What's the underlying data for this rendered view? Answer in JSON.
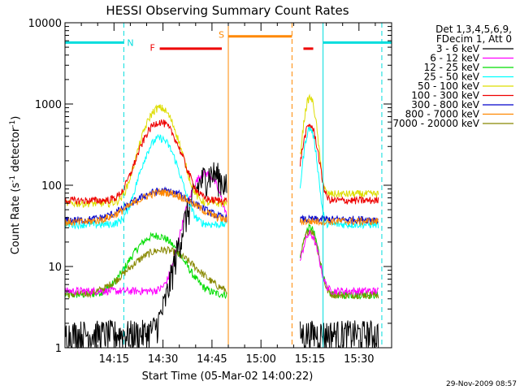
{
  "chart_data": {
    "type": "line",
    "title": "HESSI Observing Summary Count Rates",
    "xlabel": "Start Time (05-Mar-02 14:00:22)",
    "ylabel_main": "Count Rate (s",
    "ylabel_sup1": "-1",
    "ylabel_mid": " detector",
    "ylabel_sup2": "-1",
    "ylabel_end": ")",
    "y_scale": "log",
    "ylim": [
      1,
      10000
    ],
    "xlim_minutes": [
      0,
      100
    ],
    "x_ticks": [
      {
        "minute": 15,
        "label": "14:15"
      },
      {
        "minute": 30,
        "label": "14:30"
      },
      {
        "minute": 45,
        "label": "14:45"
      },
      {
        "minute": 60,
        "label": "15:00"
      },
      {
        "minute": 75,
        "label": "15:15"
      },
      {
        "minute": 90,
        "label": "15:30"
      }
    ],
    "y_ticks": [
      {
        "value": 1,
        "label": "1"
      },
      {
        "value": 10,
        "label": "10"
      },
      {
        "value": 100,
        "label": "100"
      },
      {
        "value": 1000,
        "label": "1000"
      },
      {
        "value": 10000,
        "label": "10000"
      }
    ],
    "legend_header": [
      "Det 1,3,4,5,6,9,",
      "FDecim 1, Att 0"
    ],
    "legend_position": "right, outside plot",
    "series": [
      {
        "name": "3 - 6 keV",
        "color": "#000000"
      },
      {
        "name": "6 - 12 keV",
        "color": "#ff00ff"
      },
      {
        "name": "12 - 25 keV",
        "color": "#00dd00"
      },
      {
        "name": "25 - 50 keV",
        "color": "#00ffff"
      },
      {
        "name": "50 - 100 keV",
        "color": "#dddd00"
      },
      {
        "name": "100 - 300 keV",
        "color": "#ee0000"
      },
      {
        "name": "300 - 800 keV",
        "color": "#0000cc"
      },
      {
        "name": "800 - 7000 keV",
        "color": "#ff8800"
      },
      {
        "name": "7000 - 20000 keV",
        "color": "#888800"
      }
    ],
    "data_gaps_minutes": [
      [
        49.5,
        72
      ],
      [
        96,
        100
      ]
    ],
    "curve_model": {
      "segments": [
        {
          "start": 0,
          "end": 49.5
        },
        {
          "start": 72,
          "end": 96
        }
      ],
      "baselines_seg1": [
        1.5,
        5,
        4.5,
        33,
        60,
        65,
        37,
        35,
        4.5
      ],
      "baselines_seg2": [
        1.5,
        5,
        4.5,
        33,
        78,
        65,
        38,
        36,
        4.5
      ],
      "peaks": [
        {
          "series": 3,
          "center": 29,
          "height": 380,
          "width": 4
        },
        {
          "series": 4,
          "center": 29,
          "height": 900,
          "width": 4
        },
        {
          "series": 5,
          "center": 29,
          "height": 600,
          "width": 4.5
        },
        {
          "series": 6,
          "center": 30,
          "height": 85,
          "width": 8
        },
        {
          "series": 7,
          "center": 30,
          "height": 82,
          "width": 8
        },
        {
          "series": 2,
          "center": 28,
          "height": 24,
          "width": 6
        },
        {
          "series": 8,
          "center": 30,
          "height": 16,
          "width": 8
        },
        {
          "series": 1,
          "center": 43,
          "height": 140,
          "width": 4
        },
        {
          "series": 0,
          "center": 45,
          "height": 140,
          "width": 5
        },
        {
          "series": 3,
          "center": 75,
          "height": 500,
          "width": 1.5
        },
        {
          "series": 4,
          "center": 75,
          "height": 1200,
          "width": 1.5
        },
        {
          "series": 5,
          "center": 75,
          "height": 550,
          "width": 1.8
        },
        {
          "series": 2,
          "center": 75,
          "height": 30,
          "width": 2
        },
        {
          "series": 8,
          "center": 75,
          "height": 28,
          "width": 2
        },
        {
          "series": 1,
          "center": 75,
          "height": 25,
          "width": 2
        }
      ]
    },
    "annotations": [
      {
        "label": "N",
        "color": "#00dddd"
      },
      {
        "label": "F",
        "color": "#ee0000"
      },
      {
        "label": "S",
        "color": "#ff8800"
      }
    ],
    "flag_bars": [
      {
        "name": "night",
        "color": "#00dddd",
        "value": 5700,
        "ranges": [
          [
            0,
            18
          ],
          [
            79,
            100
          ]
        ]
      },
      {
        "name": "flare",
        "color": "#ee0000",
        "value": 4800,
        "ranges": [
          [
            29,
            48
          ],
          [
            73,
            76
          ]
        ]
      },
      {
        "name": "saa",
        "color": "#ff8800",
        "value": 6800,
        "ranges": [
          [
            50,
            69.5
          ]
        ]
      }
    ],
    "event_lines": [
      {
        "minute": 0,
        "color": "#00dddd",
        "style": "solid"
      },
      {
        "minute": 18,
        "color": "#00dddd",
        "style": "dashed"
      },
      {
        "minute": 50,
        "color": "#ff8800",
        "style": "solid"
      },
      {
        "minute": 69.5,
        "color": "#ff8800",
        "style": "dashed"
      },
      {
        "minute": 79,
        "color": "#00dddd",
        "style": "solid"
      },
      {
        "minute": 97,
        "color": "#00dddd",
        "style": "dashed"
      }
    ],
    "grid": false
  },
  "footer": {
    "timestamp": "29-Nov-2009 08:57"
  }
}
